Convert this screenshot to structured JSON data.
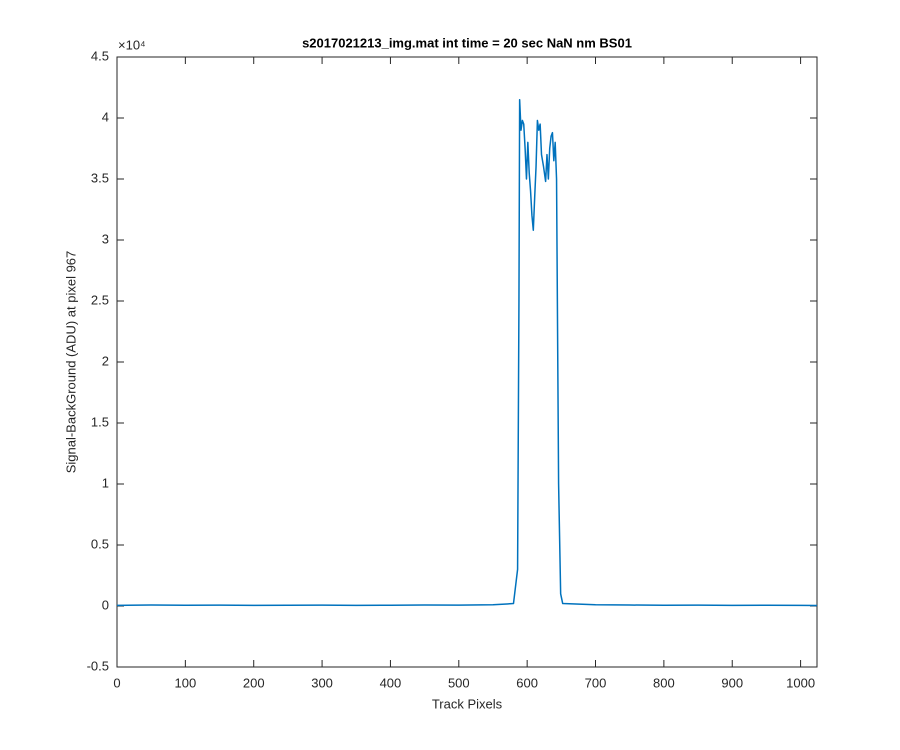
{
  "chart_data": {
    "type": "line",
    "title": "s2017021213_img.mat int time = 20 sec  NaN nm BS01",
    "x_label": "Track Pixels",
    "y_label": "Signal-BackGround (ADU) at pixel 967",
    "y_exponent_label": "×10⁴",
    "xlim": [
      0,
      1024
    ],
    "ylim": [
      -0.5,
      4.5
    ],
    "xticks": [
      0,
      100,
      200,
      300,
      400,
      500,
      600,
      700,
      800,
      900,
      1000
    ],
    "yticks": [
      -0.5,
      0,
      0.5,
      1,
      1.5,
      2,
      2.5,
      3,
      3.5,
      4,
      4.5
    ],
    "grid": false,
    "series": [
      {
        "color": "#0072bd",
        "x": [
          0,
          50,
          100,
          150,
          200,
          250,
          300,
          350,
          400,
          450,
          500,
          550,
          580,
          586,
          588,
          589,
          591,
          593,
          595,
          597,
          599,
          601,
          603,
          605,
          607,
          609,
          611,
          613,
          615,
          617,
          619,
          621,
          624,
          627,
          629,
          631,
          633,
          635,
          637,
          639,
          641,
          643,
          646,
          649,
          652,
          700,
          750,
          800,
          850,
          900,
          950,
          1000,
          1024
        ],
        "values": [
          0.005,
          0.008,
          0.006,
          0.007,
          0.005,
          0.006,
          0.007,
          0.005,
          0.006,
          0.008,
          0.007,
          0.01,
          0.02,
          0.3,
          2.5,
          4.15,
          3.9,
          3.98,
          3.95,
          3.75,
          3.5,
          3.8,
          3.55,
          3.4,
          3.2,
          3.08,
          3.35,
          3.6,
          3.98,
          3.9,
          3.95,
          3.7,
          3.6,
          3.48,
          3.7,
          3.5,
          3.75,
          3.85,
          3.88,
          3.65,
          3.8,
          3.5,
          1.0,
          0.1,
          0.02,
          0.01,
          0.008,
          0.006,
          0.007,
          0.005,
          0.006,
          0.005,
          0.004
        ]
      }
    ]
  }
}
